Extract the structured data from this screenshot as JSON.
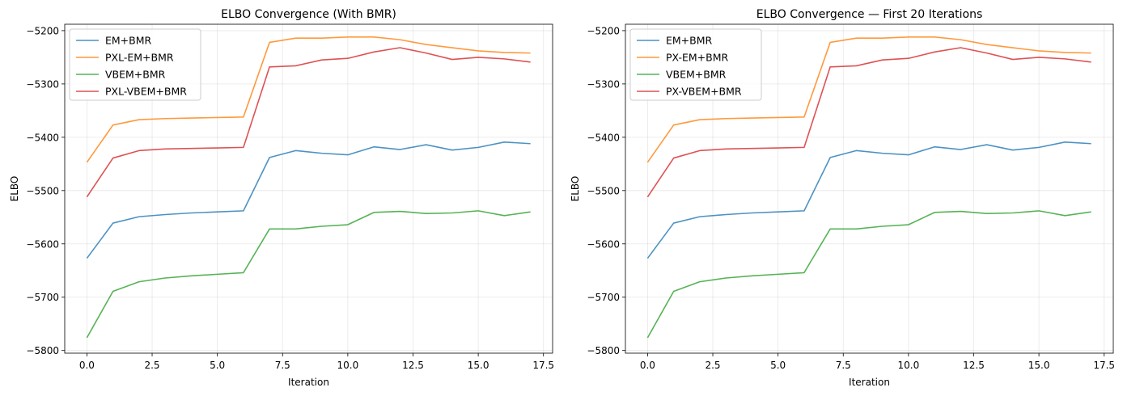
{
  "chart_data": [
    {
      "type": "line",
      "title": "ELBO Convergence (With BMR)",
      "xlabel": "Iteration",
      "ylabel": "ELBO",
      "xlim": [
        -0.85,
        17.85
      ],
      "ylim": [
        -5805,
        -5188
      ],
      "xticks": [
        0.0,
        2.5,
        5.0,
        7.5,
        10.0,
        12.5,
        15.0,
        17.5
      ],
      "xtick_labels": [
        "0.0",
        "2.5",
        "5.0",
        "7.5",
        "10.0",
        "12.5",
        "15.0",
        "17.5"
      ],
      "yticks": [
        -5800,
        -5700,
        -5600,
        -5500,
        -5400,
        -5300,
        -5200
      ],
      "ytick_labels": [
        "−5800",
        "−5700",
        "−5600",
        "−5500",
        "−5400",
        "−5300",
        "−5200"
      ],
      "grid": true,
      "legend_position": "upper-left",
      "x": [
        0,
        1,
        2,
        3,
        4,
        5,
        6,
        7,
        8,
        9,
        10,
        11,
        12,
        13,
        14,
        15,
        16,
        17
      ],
      "series": [
        {
          "name": "EM+BMR",
          "color": "#1f77b4",
          "values": [
            -5627,
            -5561,
            -5549,
            -5545,
            -5542,
            -5540,
            -5538,
            -5438,
            -5425,
            -5430,
            -5433,
            -5418,
            -5423,
            -5414,
            -5424,
            -5419,
            -5409,
            -5412
          ]
        },
        {
          "name": "PXL-EM+BMR",
          "color": "#ff7f0e",
          "values": [
            -5447,
            -5377,
            -5367,
            -5365,
            -5364,
            -5363,
            -5362,
            -5222,
            -5214,
            -5214,
            -5212,
            -5212,
            -5217,
            -5226,
            -5232,
            -5238,
            -5241,
            -5242
          ]
        },
        {
          "name": "VBEM+BMR",
          "color": "#2ca02c",
          "values": [
            -5776,
            -5689,
            -5671,
            -5664,
            -5660,
            -5657,
            -5654,
            -5572,
            -5572,
            -5567,
            -5564,
            -5541,
            -5539,
            -5543,
            -5542,
            -5538,
            -5547,
            -5540
          ]
        },
        {
          "name": "PXL-VBEM+BMR",
          "color": "#d62728",
          "values": [
            -5512,
            -5439,
            -5425,
            -5422,
            -5421,
            -5420,
            -5419,
            -5268,
            -5266,
            -5255,
            -5252,
            -5240,
            -5232,
            -5242,
            -5254,
            -5250,
            -5253,
            -5259
          ]
        }
      ]
    },
    {
      "type": "line",
      "title": "ELBO Convergence — First 20 Iterations",
      "xlabel": "Iteration",
      "ylabel": "ELBO",
      "xlim": [
        -0.85,
        17.85
      ],
      "ylim": [
        -5805,
        -5188
      ],
      "xticks": [
        0.0,
        2.5,
        5.0,
        7.5,
        10.0,
        12.5,
        15.0,
        17.5
      ],
      "xtick_labels": [
        "0.0",
        "2.5",
        "5.0",
        "7.5",
        "10.0",
        "12.5",
        "15.0",
        "17.5"
      ],
      "yticks": [
        -5800,
        -5700,
        -5600,
        -5500,
        -5400,
        -5300,
        -5200
      ],
      "ytick_labels": [
        "−5800",
        "−5700",
        "−5600",
        "−5500",
        "−5400",
        "−5300",
        "−5200"
      ],
      "grid": true,
      "legend_position": "upper-left",
      "x": [
        0,
        1,
        2,
        3,
        4,
        5,
        6,
        7,
        8,
        9,
        10,
        11,
        12,
        13,
        14,
        15,
        16,
        17
      ],
      "series": [
        {
          "name": "EM+BMR",
          "color": "#1f77b4",
          "values": [
            -5627,
            -5561,
            -5549,
            -5545,
            -5542,
            -5540,
            -5538,
            -5438,
            -5425,
            -5430,
            -5433,
            -5418,
            -5423,
            -5414,
            -5424,
            -5419,
            -5409,
            -5412
          ]
        },
        {
          "name": "PX-EM+BMR",
          "color": "#ff7f0e",
          "values": [
            -5447,
            -5377,
            -5367,
            -5365,
            -5364,
            -5363,
            -5362,
            -5222,
            -5214,
            -5214,
            -5212,
            -5212,
            -5217,
            -5226,
            -5232,
            -5238,
            -5241,
            -5242
          ]
        },
        {
          "name": "VBEM+BMR",
          "color": "#2ca02c",
          "values": [
            -5776,
            -5689,
            -5671,
            -5664,
            -5660,
            -5657,
            -5654,
            -5572,
            -5572,
            -5567,
            -5564,
            -5541,
            -5539,
            -5543,
            -5542,
            -5538,
            -5547,
            -5540
          ]
        },
        {
          "name": "PX-VBEM+BMR",
          "color": "#d62728",
          "values": [
            -5512,
            -5439,
            -5425,
            -5422,
            -5421,
            -5420,
            -5419,
            -5268,
            -5266,
            -5255,
            -5252,
            -5240,
            -5232,
            -5242,
            -5254,
            -5250,
            -5253,
            -5259
          ]
        }
      ]
    }
  ]
}
